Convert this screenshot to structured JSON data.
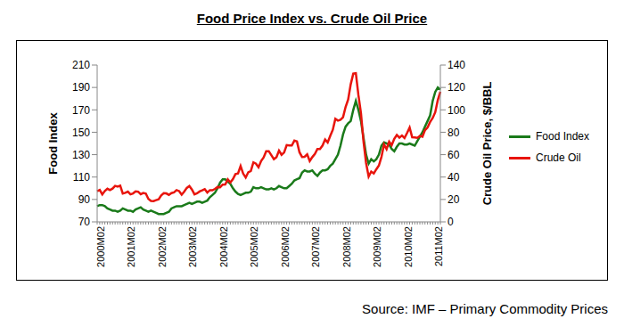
{
  "chart_data": {
    "type": "line",
    "title": "Food Price Index vs. Crude Oil Price",
    "subtitle": "Source: IMF – Primary Commodity Prices",
    "ylabel": "Food Index",
    "y2label": "Crude Oil Price, $/BBL",
    "categories": [
      "2000M02",
      null,
      null,
      null,
      null,
      null,
      null,
      null,
      null,
      null,
      null,
      null,
      "2001M02",
      null,
      null,
      null,
      null,
      null,
      null,
      null,
      null,
      null,
      null,
      null,
      "2002M02",
      null,
      null,
      null,
      null,
      null,
      null,
      null,
      null,
      null,
      null,
      null,
      "2003M02",
      null,
      null,
      null,
      null,
      null,
      null,
      null,
      null,
      null,
      null,
      null,
      "2004M02",
      null,
      null,
      null,
      null,
      null,
      null,
      null,
      null,
      null,
      null,
      null,
      "2005M02",
      null,
      null,
      null,
      null,
      null,
      null,
      null,
      null,
      null,
      null,
      null,
      "2006M02",
      null,
      null,
      null,
      null,
      null,
      null,
      null,
      null,
      null,
      null,
      null,
      "2007M02",
      null,
      null,
      null,
      null,
      null,
      null,
      null,
      null,
      null,
      null,
      null,
      "2008M02",
      null,
      null,
      null,
      null,
      null,
      null,
      null,
      null,
      null,
      null,
      null,
      "2009M02",
      null,
      null,
      null,
      null,
      null,
      null,
      null,
      null,
      null,
      null,
      null,
      "2010M02",
      null,
      null,
      null,
      null,
      null,
      null,
      null,
      null,
      null,
      null,
      null,
      "2011M02",
      null,
      null
    ],
    "series": [
      {
        "name": "Food Index",
        "color": "#1a7a1a",
        "values": [
          84,
          85,
          85,
          84,
          82,
          81,
          80,
          80,
          79,
          80,
          82,
          81,
          80,
          80,
          79,
          81,
          82,
          83,
          81,
          80,
          79,
          80,
          79,
          78,
          77,
          77,
          77,
          78,
          79,
          82,
          83,
          84,
          84,
          84,
          85,
          86,
          87,
          86,
          87,
          88,
          88,
          87,
          88,
          89,
          92,
          94,
          96,
          100,
          105,
          108,
          108,
          106,
          104,
          100,
          97,
          95,
          94,
          95,
          96,
          96,
          97,
          101,
          100,
          100,
          101,
          100,
          99,
          99,
          100,
          99,
          100,
          102,
          101,
          100,
          100,
          102,
          104,
          107,
          108,
          109,
          114,
          116,
          115,
          115,
          116,
          113,
          111,
          114,
          116,
          116,
          117,
          120,
          122,
          126,
          130,
          138,
          148,
          155,
          158,
          160,
          170,
          178,
          170,
          160,
          145,
          130,
          122,
          126,
          124,
          126,
          130,
          138,
          141,
          140,
          139,
          135,
          133,
          137,
          140,
          140,
          139,
          139,
          140,
          139,
          138,
          142,
          146,
          150,
          155,
          160,
          165,
          178,
          186,
          190,
          188
        ]
      },
      {
        "name": "Crude Oil",
        "color": "#e8140c",
        "axis": "y2",
        "values": [
          27.4,
          28.5,
          24.5,
          27.6,
          29.6,
          28.3,
          29.7,
          32.1,
          31.4,
          32.3,
          25.3,
          25.9,
          27.0,
          24.6,
          25.4,
          27.2,
          26.9,
          24.7,
          25.8,
          25.2,
          20.5,
          18.7,
          18.5,
          19.4,
          20.2,
          23.7,
          25.7,
          25.4,
          24.1,
          25.7,
          26.3,
          28.3,
          27.5,
          24.3,
          27.0,
          30.3,
          32.0,
          28.9,
          24.6,
          25.5,
          27.1,
          28.1,
          29.2,
          26.2,
          28.3,
          28.2,
          29.4,
          31.1,
          30.9,
          33.3,
          33.4,
          37.9,
          35.2,
          38.2,
          42.7,
          43.2,
          49.8,
          43.1,
          39.6,
          44.3,
          45.5,
          53.1,
          51.9,
          48.7,
          54.3,
          57.5,
          63.0,
          63.1,
          59.5,
          56.0,
          57.7,
          63.6,
          59.9,
          62.0,
          68.6,
          68.3,
          68.2,
          72.5,
          71.8,
          62.1,
          57.9,
          58.1,
          60.3,
          54.3,
          57.8,
          60.6,
          65.1,
          65.1,
          68.2,
          73.5,
          70.9,
          76.8,
          82.2,
          92.0,
          90.4,
          91.1,
          93.4,
          102.6,
          109.3,
          122.8,
          132.3,
          132.7,
          113.2,
          97.0,
          71.6,
          52.5,
          40.4,
          44.9,
          43.2,
          47.0,
          50.3,
          58.0,
          69.1,
          64.9,
          71.6,
          68.4,
          74.1,
          77.6,
          75.2,
          77.1,
          74.8,
          79.3,
          84.2,
          75.6,
          75.4,
          75.0,
          76.7,
          76.0,
          81.9,
          84.3,
          89.2,
          92.7,
          97.9,
          108.7,
          116.3
        ]
      }
    ],
    "ylim": [
      70,
      210
    ],
    "yticks": [
      70,
      90,
      110,
      130,
      150,
      170,
      190,
      210
    ],
    "y2lim": [
      0,
      140
    ],
    "y2ticks": [
      0,
      20,
      40,
      60,
      80,
      100,
      120,
      140
    ],
    "grid": false,
    "legend": "right"
  }
}
